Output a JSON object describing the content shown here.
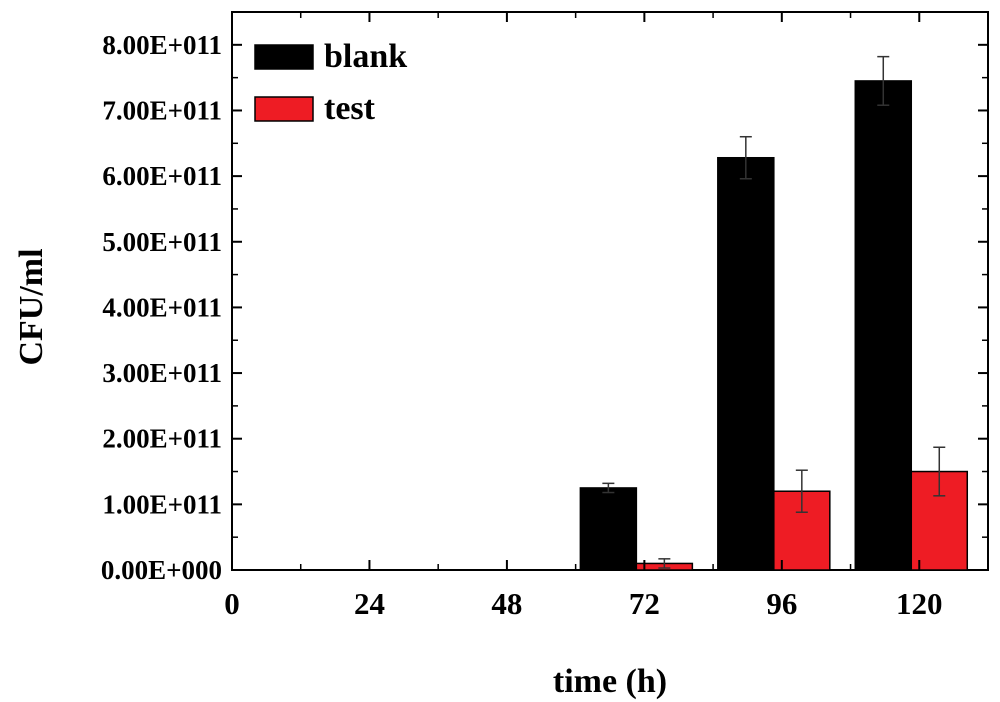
{
  "chart_data": {
    "type": "bar",
    "xlabel": "time (h)",
    "ylabel": "CFU/ml",
    "x_ticks": [
      "0",
      "24",
      "48",
      "72",
      "96",
      "120"
    ],
    "x_tick_values": [
      0,
      24,
      48,
      72,
      96,
      120
    ],
    "xlim": [
      0,
      132
    ],
    "ylim": [
      0,
      850000000000
    ],
    "y_ticks": [
      "0.00E+000",
      "1.00E+011",
      "2.00E+011",
      "3.00E+011",
      "4.00E+011",
      "5.00E+011",
      "6.00E+011",
      "7.00E+011",
      "8.00E+011"
    ],
    "y_tick_values": [
      0,
      100000000000,
      200000000000,
      300000000000,
      400000000000,
      500000000000,
      600000000000,
      700000000000,
      800000000000
    ],
    "categories": [
      72,
      96,
      120
    ],
    "series": [
      {
        "name": "blank",
        "color": "#000000",
        "values": [
          125000000000,
          628000000000,
          745000000000
        ],
        "errors": [
          7000000000,
          32000000000,
          37000000000
        ]
      },
      {
        "name": "test",
        "color": "#ee1c24",
        "values": [
          10000000000,
          120000000000,
          150000000000
        ],
        "errors": [
          7000000000,
          32000000000,
          37000000000
        ]
      }
    ],
    "legend_position": "top-left",
    "grid": false
  }
}
